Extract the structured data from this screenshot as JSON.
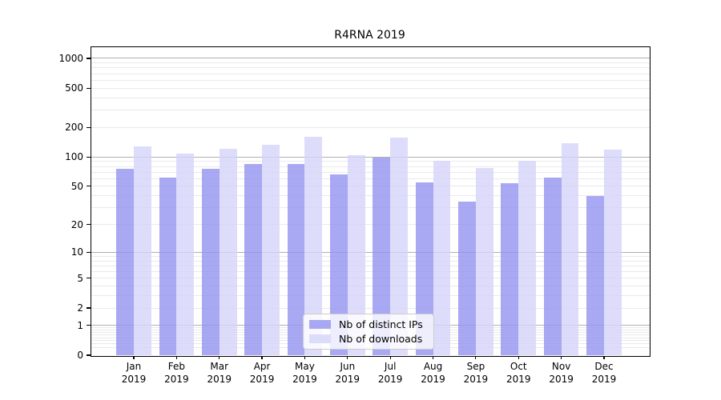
{
  "title": "R4RNA 2019",
  "legend": {
    "items": [
      {
        "label": "Nb of distinct IPs"
      },
      {
        "label": "Nb of downloads"
      }
    ]
  },
  "axes": {
    "y_ticks": [
      {
        "value": 1000,
        "label": "1000"
      },
      {
        "value": 500,
        "label": "500"
      },
      {
        "value": 200,
        "label": "200"
      },
      {
        "value": 100,
        "label": "100"
      },
      {
        "value": 50,
        "label": "50"
      },
      {
        "value": 20,
        "label": "20"
      },
      {
        "value": 10,
        "label": "10"
      },
      {
        "value": 5,
        "label": "5"
      },
      {
        "value": 2,
        "label": "2"
      },
      {
        "value": 1,
        "label": "1"
      },
      {
        "value": 0,
        "label": "0"
      }
    ],
    "x_ticks": [
      {
        "month": "Jan",
        "year": "2019"
      },
      {
        "month": "Feb",
        "year": "2019"
      },
      {
        "month": "Mar",
        "year": "2019"
      },
      {
        "month": "Apr",
        "year": "2019"
      },
      {
        "month": "May",
        "year": "2019"
      },
      {
        "month": "Jun",
        "year": "2019"
      },
      {
        "month": "Jul",
        "year": "2019"
      },
      {
        "month": "Aug",
        "year": "2019"
      },
      {
        "month": "Sep",
        "year": "2019"
      },
      {
        "month": "Oct",
        "year": "2019"
      },
      {
        "month": "Nov",
        "year": "2019"
      },
      {
        "month": "Dec",
        "year": "2019"
      }
    ]
  },
  "chart_data": {
    "type": "bar",
    "title": "R4RNA 2019",
    "categories": [
      "Jan 2019",
      "Feb 2019",
      "Mar 2019",
      "Apr 2019",
      "May 2019",
      "Jun 2019",
      "Jul 2019",
      "Aug 2019",
      "Sep 2019",
      "Oct 2019",
      "Nov 2019",
      "Dec 2019"
    ],
    "series": [
      {
        "name": "Nb of distinct IPs",
        "key": "distinct-ips",
        "color": "rgba(146,146,240,0.8)",
        "values": [
          75,
          62,
          75,
          84,
          84,
          66,
          98,
          55,
          35,
          54,
          62,
          40
        ]
      },
      {
        "name": "Nb of downloads",
        "key": "downloads",
        "color": "rgba(212,212,250,0.8)",
        "values": [
          128,
          108,
          122,
          134,
          159,
          105,
          158,
          92,
          77,
          92,
          139,
          118
        ]
      }
    ],
    "yscale": "symlog",
    "yticks": [
      0,
      1,
      2,
      5,
      10,
      20,
      50,
      100,
      200,
      500,
      1000
    ],
    "ylim": [
      0,
      1270
    ],
    "grid": true,
    "legend_position": "lower center"
  },
  "colors": {
    "grid_major": "#b0b0b0",
    "grid_minor": "#eaeaea",
    "axis": "#000000",
    "legend_border": "#cccccc"
  }
}
